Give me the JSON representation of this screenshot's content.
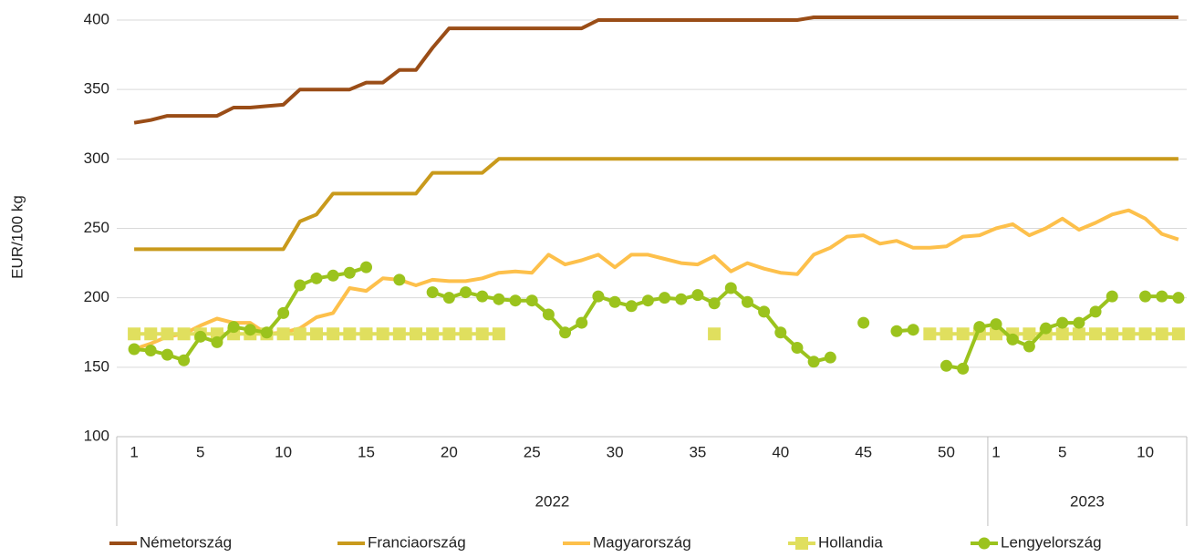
{
  "chart_data": {
    "type": "line",
    "y_label": "EUR/100 kg",
    "category_groups": [
      {
        "name": "2022",
        "categories": [
          "1",
          null,
          null,
          null,
          "5",
          null,
          null,
          null,
          null,
          "10",
          null,
          null,
          null,
          null,
          "15",
          null,
          null,
          null,
          null,
          "20",
          null,
          null,
          null,
          null,
          "25",
          null,
          null,
          null,
          null,
          "30",
          null,
          null,
          null,
          null,
          "35",
          null,
          null,
          null,
          null,
          "40",
          null,
          null,
          null,
          null,
          "45",
          null,
          null,
          null,
          null,
          "50",
          null,
          null
        ]
      },
      {
        "name": "2023",
        "categories": [
          "1",
          null,
          null,
          null,
          "5",
          null,
          null,
          null,
          null,
          "10",
          null,
          null
        ]
      }
    ],
    "ylim": [
      100,
      400
    ],
    "yticks": [
      100,
      150,
      200,
      250,
      300,
      350,
      400
    ],
    "grid": true,
    "legend": "bottom",
    "series": [
      {
        "name": "Németország",
        "color": "#9a4d17",
        "marker": null,
        "values": [
          326,
          328,
          331,
          331,
          331,
          331,
          337,
          337,
          338,
          339,
          350,
          350,
          350,
          350,
          355,
          355,
          364,
          364,
          380,
          394,
          394,
          394,
          394,
          394,
          394,
          394,
          394,
          394,
          400,
          400,
          400,
          400,
          400,
          400,
          400,
          400,
          400,
          400,
          400,
          400,
          400,
          402,
          402,
          402,
          402,
          402,
          402,
          402,
          402,
          402,
          402,
          402,
          402,
          402,
          402,
          402,
          402,
          402,
          402,
          402,
          402,
          402,
          402,
          402
        ]
      },
      {
        "name": "Franciaország",
        "color": "#c99a1c",
        "marker": null,
        "values": [
          235,
          235,
          235,
          235,
          235,
          235,
          235,
          235,
          235,
          235,
          255,
          260,
          275,
          275,
          275,
          275,
          275,
          275,
          290,
          290,
          290,
          290,
          300,
          300,
          300,
          300,
          300,
          300,
          300,
          300,
          300,
          300,
          300,
          300,
          300,
          300,
          300,
          300,
          300,
          300,
          300,
          300,
          300,
          300,
          300,
          300,
          300,
          300,
          300,
          300,
          300,
          300,
          300,
          300,
          300,
          300,
          300,
          300,
          300,
          300,
          300,
          300,
          300,
          300
        ]
      },
      {
        "name": "Magyarország",
        "color": "#fdc04b",
        "marker": null,
        "values": [
          163,
          167,
          172,
          174,
          180,
          185,
          182,
          182,
          174,
          175,
          178,
          186,
          189,
          207,
          205,
          214,
          213,
          209,
          213,
          212,
          212,
          214,
          218,
          219,
          218,
          231,
          224,
          227,
          231,
          222,
          231,
          231,
          228,
          225,
          224,
          230,
          219,
          225,
          221,
          218,
          217,
          231,
          236,
          244,
          245,
          239,
          241,
          236,
          236,
          237,
          244,
          245,
          250,
          253,
          245,
          250,
          257,
          249,
          254,
          260,
          263,
          257,
          246,
          242
        ]
      },
      {
        "name": "Hollandia",
        "color": "#e0df5e",
        "marker": "square",
        "values": [
          174,
          174,
          174,
          174,
          174,
          174,
          174,
          174,
          174,
          174,
          174,
          174,
          174,
          174,
          174,
          174,
          174,
          174,
          174,
          174,
          174,
          174,
          174,
          null,
          null,
          null,
          null,
          null,
          null,
          null,
          null,
          null,
          null,
          null,
          null,
          174,
          null,
          null,
          null,
          null,
          null,
          null,
          null,
          null,
          null,
          null,
          null,
          null,
          174,
          174,
          174,
          174,
          174,
          174,
          174,
          174,
          174,
          174,
          174,
          174,
          174,
          174,
          174,
          174
        ]
      },
      {
        "name": "Lengyelország",
        "color": "#9bc31d",
        "marker": "circle",
        "values": [
          163,
          162,
          159,
          155,
          172,
          168,
          179,
          177,
          175,
          189,
          209,
          214,
          216,
          218,
          222,
          null,
          213,
          null,
          204,
          200,
          204,
          201,
          199,
          198,
          198,
          188,
          175,
          182,
          201,
          197,
          194,
          198,
          200,
          199,
          202,
          196,
          207,
          197,
          190,
          175,
          164,
          154,
          157,
          null,
          182,
          null,
          176,
          177,
          null,
          151,
          149,
          179,
          181,
          170,
          165,
          178,
          182,
          182,
          190,
          201,
          null,
          201,
          201,
          200
        ]
      }
    ]
  }
}
